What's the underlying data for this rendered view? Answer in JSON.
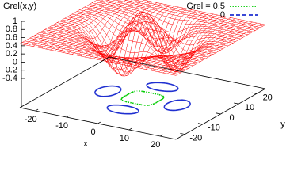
{
  "chart_data": {
    "type": "surface3d",
    "zlabel": "Grel(x,y)",
    "xlabel": "x",
    "ylabel": "y",
    "xlim": [
      -25,
      25
    ],
    "ylim": [
      -25,
      25
    ],
    "zlim": [
      -0.4,
      1
    ],
    "xticks": [
      -20,
      -10,
      0,
      10,
      20
    ],
    "yticks": [
      -20,
      -10,
      0,
      10,
      20
    ],
    "zticks": [
      -0.4,
      -0.2,
      0,
      0.2,
      0.4,
      0.6,
      0.8,
      1
    ],
    "surface_color": "#ff0000",
    "series": [
      {
        "name": "Grel = 0.5",
        "color": "#00cc00",
        "dash": "dot",
        "level": 0.5
      },
      {
        "name": "0",
        "color": "#1f2fd0",
        "dash": "dash",
        "level": 0
      }
    ]
  }
}
